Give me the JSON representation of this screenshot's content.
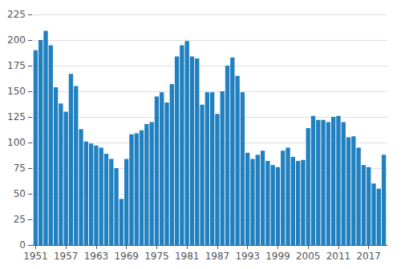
{
  "chart_data": {
    "type": "bar",
    "x": [
      1951,
      1952,
      1953,
      1954,
      1955,
      1956,
      1957,
      1958,
      1959,
      1960,
      1961,
      1962,
      1963,
      1964,
      1965,
      1966,
      1967,
      1968,
      1969,
      1970,
      1971,
      1972,
      1973,
      1974,
      1975,
      1976,
      1977,
      1978,
      1979,
      1980,
      1981,
      1982,
      1983,
      1984,
      1985,
      1986,
      1987,
      1988,
      1989,
      1990,
      1991,
      1992,
      1993,
      1994,
      1995,
      1996,
      1997,
      1998,
      1999,
      2000,
      2001,
      2002,
      2003,
      2004,
      2005,
      2006,
      2007,
      2008,
      2009,
      2010,
      2011,
      2012,
      2013,
      2014,
      2015,
      2016,
      2017,
      2018,
      2019,
      2020
    ],
    "values": [
      190,
      200,
      209,
      195,
      154,
      138,
      130,
      167,
      155,
      113,
      101,
      99,
      97,
      95,
      89,
      84,
      75,
      45,
      84,
      108,
      109,
      112,
      118,
      120,
      145,
      149,
      139,
      157,
      184,
      195,
      199,
      184,
      182,
      137,
      149,
      149,
      128,
      150,
      175,
      183,
      165,
      149,
      90,
      84,
      88,
      92,
      82,
      78,
      76,
      92,
      95,
      86,
      82,
      83,
      114,
      126,
      122,
      122,
      120,
      125,
      126,
      120,
      105,
      106,
      95,
      78,
      76,
      60,
      55,
      88
    ],
    "color": "#2080c0",
    "xlim": [
      1950.3,
      2020.7
    ],
    "xticks": [
      1951,
      1957,
      1963,
      1969,
      1975,
      1981,
      1987,
      1993,
      1999,
      2005,
      2011,
      2017
    ],
    "ylim": [
      0,
      225
    ],
    "yticks": [
      0,
      25,
      50,
      75,
      100,
      125,
      150,
      175,
      200,
      225
    ],
    "grid": true
  }
}
